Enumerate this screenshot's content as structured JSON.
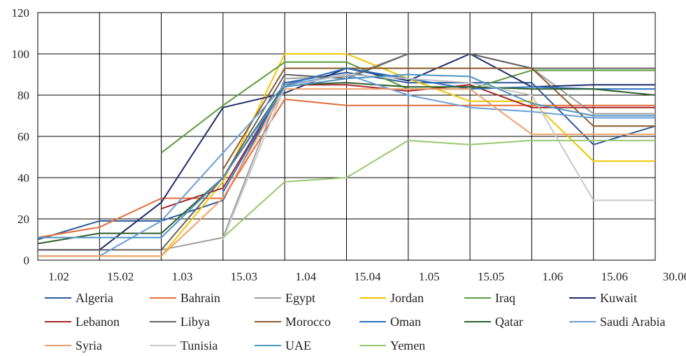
{
  "chart_data": {
    "type": "line",
    "x": [
      "1.02",
      "15.02",
      "1.03",
      "15.03",
      "1.04",
      "15.04",
      "1.05",
      "15.05",
      "1.06",
      "15.06",
      "30.06"
    ],
    "ylim": [
      0,
      120
    ],
    "yticks": [
      0,
      20,
      40,
      60,
      80,
      100,
      120
    ],
    "grid": true,
    "legend_position": "bottom",
    "series": [
      {
        "name": "Algeria",
        "color": "#2e5a9c",
        "values": [
          10,
          19,
          19,
          29,
          86,
          91,
          86,
          86,
          86,
          56,
          65
        ]
      },
      {
        "name": "Bahrain",
        "color": "#e36c3a",
        "values": [
          11,
          16,
          30,
          30,
          78,
          75,
          75,
          75,
          75,
          75,
          75
        ]
      },
      {
        "name": "Egypt",
        "color": "#9e9e9e",
        "values": [
          null,
          null,
          5,
          11,
          88,
          89,
          100,
          100,
          93,
          71,
          71
        ]
      },
      {
        "name": "Jordan",
        "color": "#f2c500",
        "values": [
          2,
          2,
          2,
          38,
          100,
          100,
          88,
          77,
          77,
          48,
          48
        ]
      },
      {
        "name": "Iraq",
        "color": "#5b9b3a",
        "values": [
          null,
          null,
          52,
          75,
          96,
          96,
          83,
          83,
          92,
          92,
          92
        ]
      },
      {
        "name": "Kuwait",
        "color": "#1f2d6b",
        "values": [
          5,
          5,
          28,
          74,
          81,
          93,
          87,
          100,
          84,
          85,
          85
        ]
      },
      {
        "name": "Lebanon",
        "color": "#a3262a",
        "values": [
          null,
          null,
          25,
          35,
          85,
          85,
          82,
          85,
          74,
          74,
          74
        ]
      },
      {
        "name": "Libya",
        "color": "#636363",
        "values": [
          5,
          5,
          5,
          40,
          90,
          88,
          100,
          100,
          93,
          93,
          93
        ]
      },
      {
        "name": "Morocco",
        "color": "#8b5a2b",
        "values": [
          null,
          null,
          null,
          44,
          93,
          93,
          93,
          93,
          93,
          65,
          65
        ]
      },
      {
        "name": "Oman",
        "color": "#2a6fbf",
        "values": [
          null,
          null,
          null,
          33,
          85,
          93,
          88,
          83,
          84,
          83,
          83
        ]
      },
      {
        "name": "Qatar",
        "color": "#2e5e2a",
        "values": [
          8,
          13,
          13,
          40,
          85,
          86,
          84,
          84,
          83,
          83,
          80
        ]
      },
      {
        "name": "Saudi Arabia",
        "color": "#6b9ed6",
        "values": [
          2,
          2,
          19,
          52,
          85,
          90,
          80,
          74,
          72,
          69,
          69
        ]
      },
      {
        "name": "Syria",
        "color": "#f0a06a",
        "values": [
          2,
          2,
          2,
          30,
          83,
          83,
          83,
          83,
          61,
          61,
          61
        ]
      },
      {
        "name": "Tunisia",
        "color": "#c8c8c8",
        "values": [
          null,
          null,
          null,
          10,
          84,
          90,
          88,
          86,
          80,
          29,
          29
        ]
      },
      {
        "name": "UAE",
        "color": "#4f94c4",
        "values": [
          11,
          11,
          11,
          40,
          84,
          88,
          90,
          89,
          76,
          70,
          70
        ]
      },
      {
        "name": "Yemen",
        "color": "#97c86e",
        "values": [
          null,
          null,
          null,
          11,
          38,
          40,
          58,
          56,
          58,
          58,
          58
        ]
      }
    ]
  }
}
